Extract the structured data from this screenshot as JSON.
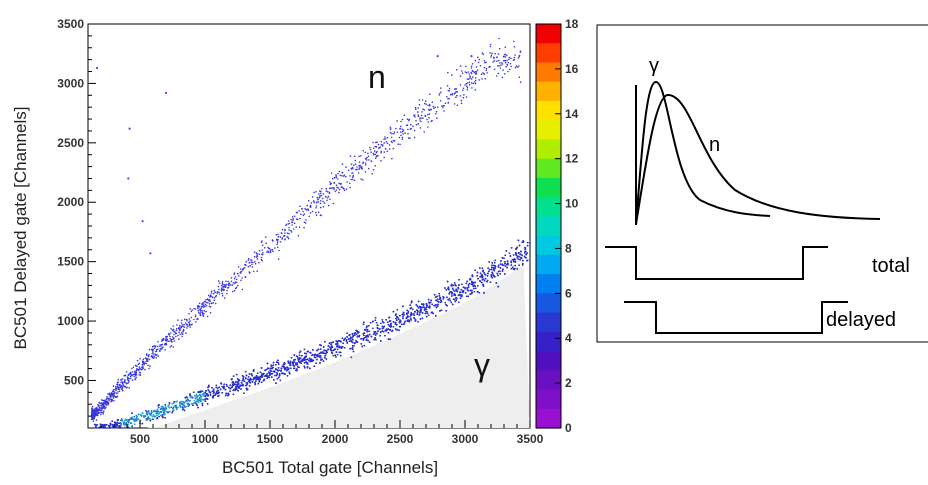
{
  "chart_data": [
    {
      "type": "scatter",
      "xlabel": "BC501 Total gate [Channels]",
      "ylabel": "BC501 Delayed gate [Channels]",
      "xlim": [
        100,
        3500
      ],
      "ylim": [
        100,
        3500
      ],
      "x_ticks": [
        "500",
        "1000",
        "1500",
        "2000",
        "2500",
        "3000",
        "3500"
      ],
      "y_ticks": [
        "500",
        "1000",
        "1500",
        "2000",
        "2500",
        "3000",
        "3500"
      ],
      "colorbar": {
        "range": [
          0,
          18
        ],
        "ticks": [
          "0",
          "2",
          "4",
          "6",
          "8",
          "10",
          "12",
          "14",
          "16",
          "18"
        ]
      },
      "annotations": [
        "n",
        "γ"
      ],
      "grid": false,
      "series": [
        {
          "band": "neutron",
          "ridge": [
            [
              150,
              220
            ],
            [
              500,
              620
            ],
            [
              1000,
              1130
            ],
            [
              1500,
              1620
            ],
            [
              2000,
              2130
            ],
            [
              2500,
              2600
            ],
            [
              3000,
              3000
            ],
            [
              3200,
              3200
            ]
          ]
        },
        {
          "band": "gamma",
          "ridge": [
            [
              250,
              100
            ],
            [
              500,
              180
            ],
            [
              1000,
              370
            ],
            [
              1500,
              560
            ],
            [
              2000,
              770
            ],
            [
              2500,
              1010
            ],
            [
              3000,
              1270
            ],
            [
              3500,
              1620
            ]
          ]
        }
      ]
    },
    {
      "type": "line",
      "series": [
        {
          "label": "γ"
        },
        {
          "label": "n"
        }
      ],
      "gates": [
        "total",
        "delayed"
      ]
    }
  ]
}
